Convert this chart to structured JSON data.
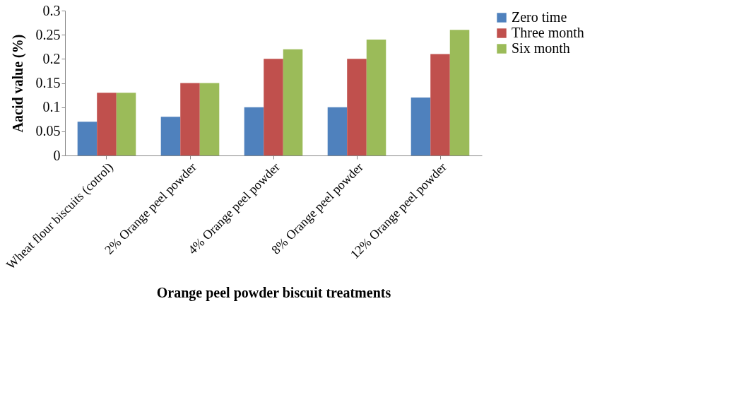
{
  "chart_data": {
    "type": "bar",
    "xlabel": "Orange peel powder biscuit treatments",
    "ylabel": "Aacid value (%)",
    "categories": [
      "Wheat flour biscuits (cotrol)",
      "2% Orange peel powder",
      "4% Orange peel powder",
      "8% Orange peel powder",
      "12% Orange peel powder"
    ],
    "series": [
      {
        "name": "Zero time",
        "color": "#4f81bd",
        "values": [
          0.07,
          0.08,
          0.1,
          0.1,
          0.12
        ]
      },
      {
        "name": "Three month",
        "color": "#c0504d",
        "values": [
          0.13,
          0.15,
          0.2,
          0.2,
          0.21
        ]
      },
      {
        "name": "Six month",
        "color": "#9bbb59",
        "values": [
          0.13,
          0.15,
          0.22,
          0.24,
          0.26
        ]
      }
    ],
    "ylim": [
      0,
      0.3
    ],
    "yticks": [
      0,
      0.05,
      0.1,
      0.15,
      0.2,
      0.25,
      0.3
    ],
    "grid": false,
    "legend": "right"
  }
}
